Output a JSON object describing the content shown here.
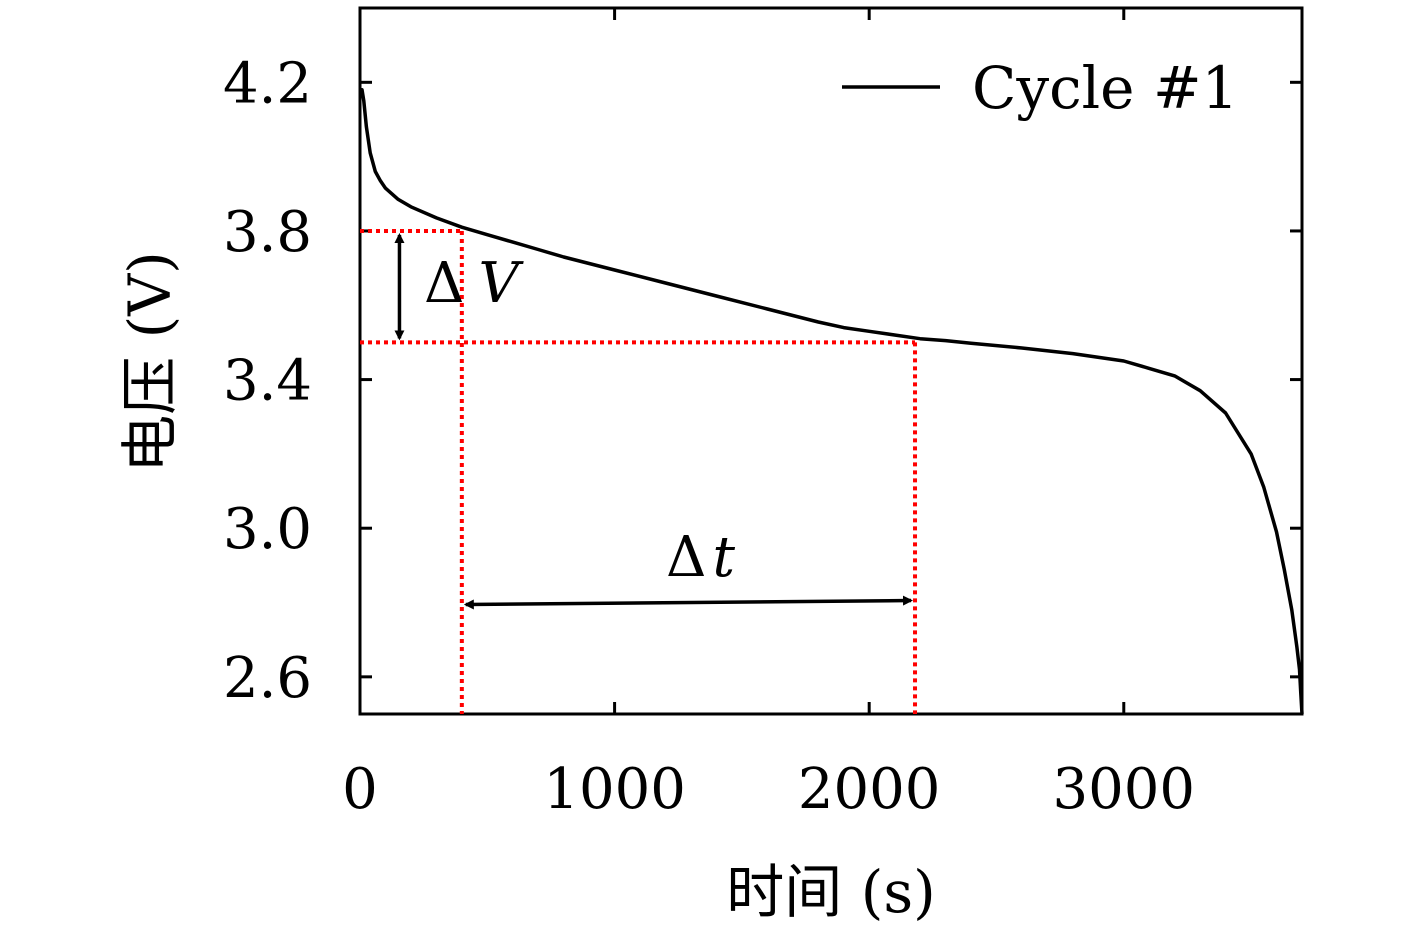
{
  "chart_data": {
    "type": "line",
    "xlabel": "时间 (s)",
    "ylabel": "电压 (V)",
    "xlim": [
      0,
      3700
    ],
    "ylim": [
      2.5,
      4.4
    ],
    "x_ticks": [
      0,
      1000,
      2000,
      3000
    ],
    "x_tick_labels": [
      "0",
      "1000",
      "2000",
      "3000"
    ],
    "y_ticks": [
      2.6,
      3.0,
      3.4,
      3.8,
      4.2
    ],
    "y_tick_labels": [
      "2.6",
      "3.0",
      "3.4",
      "3.8",
      "4.2"
    ],
    "grid": false,
    "legend_position": "top-right",
    "series": [
      {
        "name": "Cycle #1",
        "color": "#000000",
        "x": [
          0,
          8,
          15,
          25,
          40,
          60,
          80,
          100,
          150,
          200,
          300,
          400,
          500,
          600,
          700,
          800,
          1000,
          1200,
          1400,
          1600,
          1800,
          1900,
          2000,
          2100,
          2200,
          2300,
          2400,
          2600,
          2800,
          3000,
          3100,
          3200,
          3300,
          3400,
          3500,
          3550,
          3600,
          3630,
          3660,
          3680,
          3690,
          3695,
          3700
        ],
        "y": [
          4.18,
          4.18,
          4.15,
          4.08,
          4.01,
          3.96,
          3.935,
          3.915,
          3.885,
          3.865,
          3.835,
          3.81,
          3.79,
          3.77,
          3.75,
          3.73,
          3.695,
          3.66,
          3.625,
          3.59,
          3.555,
          3.54,
          3.53,
          3.52,
          3.51,
          3.505,
          3.498,
          3.485,
          3.47,
          3.45,
          3.43,
          3.41,
          3.37,
          3.31,
          3.2,
          3.11,
          2.99,
          2.89,
          2.78,
          2.68,
          2.62,
          2.56,
          2.5
        ]
      }
    ],
    "annotations": {
      "delta_v": {
        "label_symbol": "Δ",
        "label_var": "V",
        "v_high": 3.8,
        "v_low": 3.5,
        "x_arrow": 155,
        "color": "#ff0000"
      },
      "delta_t": {
        "label_symbol": "Δ",
        "label_var": "t",
        "t_start": 400,
        "t_end": 2180,
        "y_arrow": 2.8,
        "color": "#ff0000"
      }
    }
  }
}
